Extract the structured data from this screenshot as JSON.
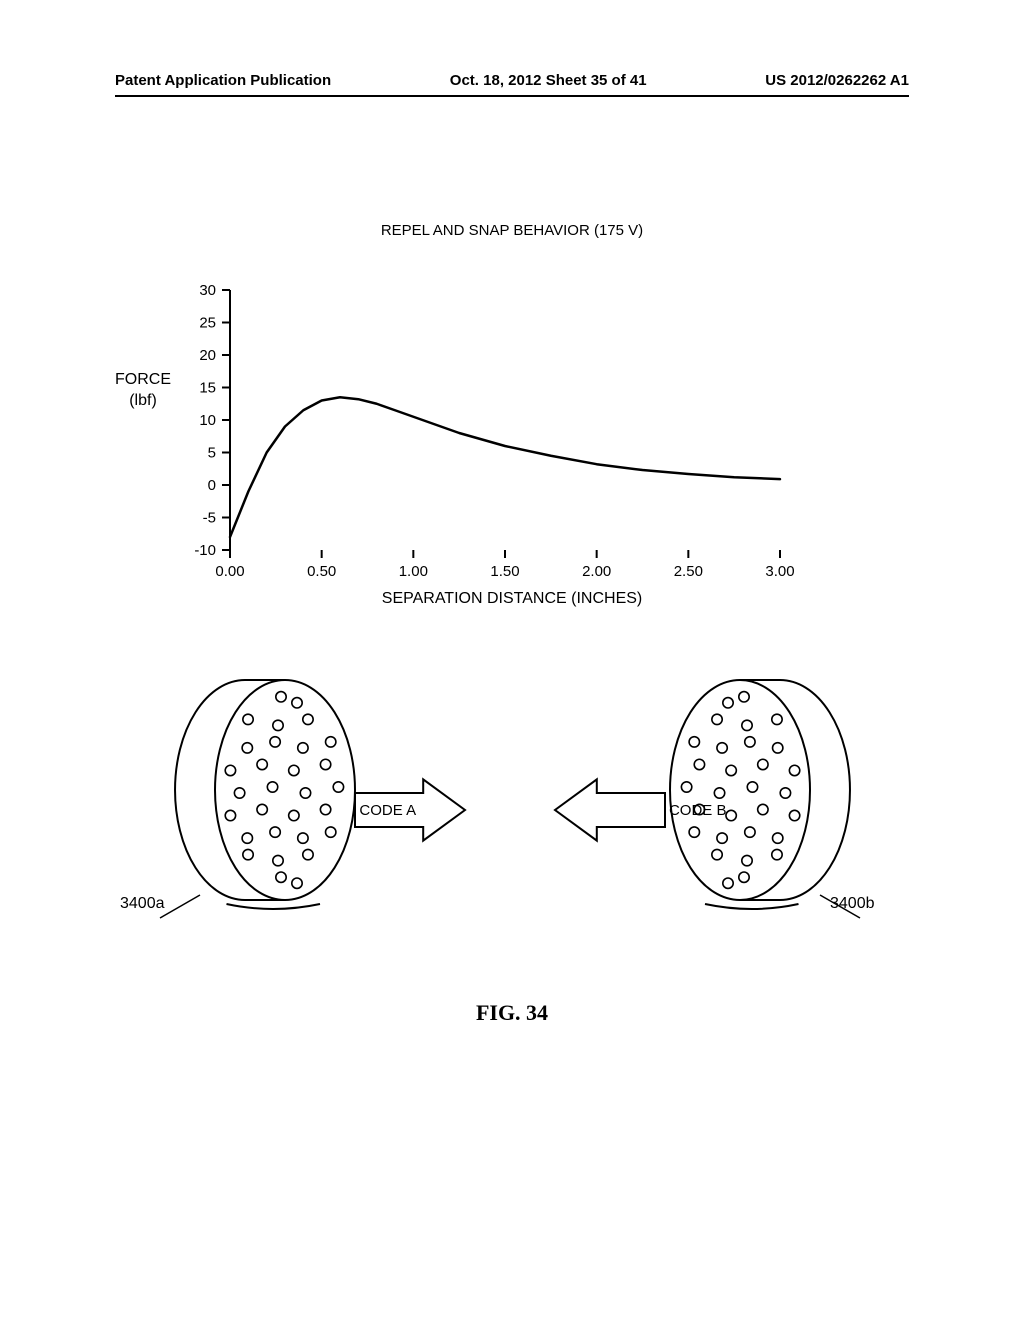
{
  "header": {
    "left": "Patent Application Publication",
    "center": "Oct. 18, 2012  Sheet 35 of 41",
    "right": "US 2012/0262262 A1"
  },
  "chart": {
    "type": "line",
    "title": "REPEL AND SNAP BEHAVIOR (175 V)",
    "ylabel_top": "FORCE",
    "ylabel_bottom": "(lbf)",
    "xlabel": "SEPARATION DISTANCE (INCHES)",
    "ylim": [
      -10,
      30
    ],
    "ytick_step": 5,
    "yticks": [
      -10,
      -5,
      0,
      5,
      10,
      15,
      20,
      25,
      30
    ],
    "xlim": [
      0.0,
      3.0
    ],
    "xtick_step": 0.5,
    "xticks": [
      "0.00",
      "0.50",
      "1.00",
      "1.50",
      "2.00",
      "2.50",
      "3.00"
    ],
    "line_color": "#000000",
    "line_width": 2.5,
    "tick_fontsize": 15,
    "label_fontsize": 16,
    "title_fontsize": 15,
    "background_color": "#ffffff",
    "data_points": [
      {
        "x": 0.0,
        "y": -8
      },
      {
        "x": 0.1,
        "y": -1
      },
      {
        "x": 0.2,
        "y": 5
      },
      {
        "x": 0.3,
        "y": 9
      },
      {
        "x": 0.4,
        "y": 11.5
      },
      {
        "x": 0.5,
        "y": 13
      },
      {
        "x": 0.6,
        "y": 13.5
      },
      {
        "x": 0.7,
        "y": 13.2
      },
      {
        "x": 0.8,
        "y": 12.5
      },
      {
        "x": 0.9,
        "y": 11.5
      },
      {
        "x": 1.0,
        "y": 10.5
      },
      {
        "x": 1.1,
        "y": 9.5
      },
      {
        "x": 1.25,
        "y": 8
      },
      {
        "x": 1.5,
        "y": 6
      },
      {
        "x": 1.75,
        "y": 4.5
      },
      {
        "x": 2.0,
        "y": 3.2
      },
      {
        "x": 2.25,
        "y": 2.3
      },
      {
        "x": 2.5,
        "y": 1.7
      },
      {
        "x": 2.75,
        "y": 1.2
      },
      {
        "x": 3.0,
        "y": 0.9
      }
    ]
  },
  "diagram": {
    "left_ref": "3400a",
    "right_ref": "3400b",
    "left_arrow_label": "CODE A",
    "right_arrow_label": "CODE B",
    "cylinder_stroke": "#000000",
    "cylinder_stroke_width": 2,
    "fill": "#ffffff"
  },
  "figure_label": "FIG. 34"
}
